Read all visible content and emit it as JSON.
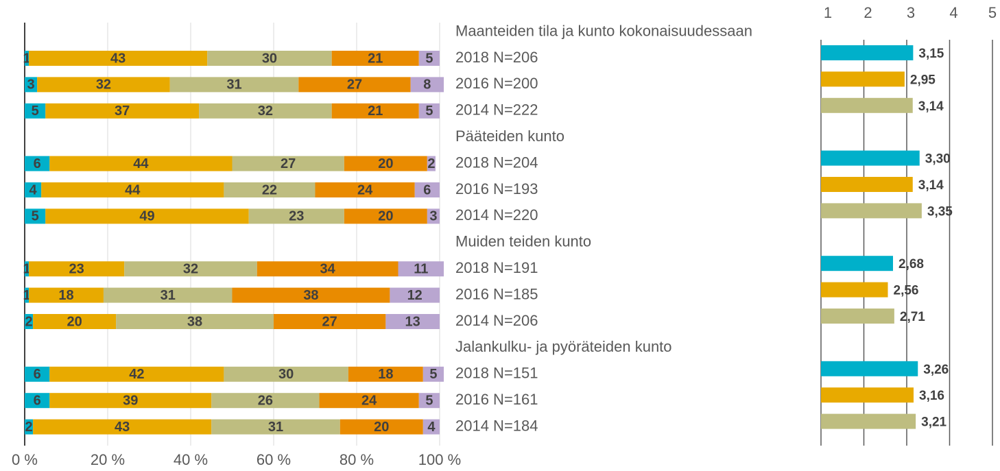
{
  "chart_data": [
    {
      "type": "stacked-bar",
      "groups": [
        "Maanteiden tila ja kunto kokonaisuudessaan",
        "Pääteiden kunto",
        "Muiden teiden kunto",
        "Jalankulku- ja pyöräteiden kunto"
      ],
      "categories": [
        "2018 N=206",
        "2016 N=200",
        "2014 N=222",
        "2018 N=204",
        "2016 N=193",
        "2014 N=220",
        "2018 N=191",
        "2016 N=185",
        "2014 N=206",
        "2018 N=151",
        "2016 N=161",
        "2014 N=184"
      ],
      "series": [
        {
          "color": "#00b0ca",
          "values": [
            1,
            3,
            5,
            6,
            4,
            5,
            1,
            1,
            2,
            6,
            6,
            2
          ]
        },
        {
          "color": "#e8aa00",
          "values": [
            43,
            32,
            37,
            44,
            44,
            49,
            23,
            18,
            20,
            42,
            39,
            43
          ]
        },
        {
          "color": "#bebd80",
          "values": [
            30,
            31,
            32,
            27,
            22,
            23,
            32,
            31,
            38,
            30,
            26,
            31
          ]
        },
        {
          "color": "#e98b00",
          "values": [
            21,
            27,
            21,
            20,
            24,
            20,
            34,
            38,
            27,
            18,
            24,
            20
          ]
        },
        {
          "color": "#b9a6d0",
          "values": [
            5,
            8,
            5,
            2,
            6,
            3,
            11,
            12,
            13,
            5,
            5,
            4
          ]
        }
      ],
      "xlim": [
        0,
        100
      ],
      "xticks": [
        {
          "value": 0,
          "label": "0 %"
        },
        {
          "value": 20,
          "label": "20 %"
        },
        {
          "value": 40,
          "label": "40 %"
        },
        {
          "value": 60,
          "label": "60 %"
        },
        {
          "value": 80,
          "label": "80 %"
        },
        {
          "value": 100,
          "label": "100 %"
        }
      ],
      "grid": true
    },
    {
      "type": "bar",
      "values": [
        3.15,
        2.95,
        3.14,
        3.3,
        3.14,
        3.35,
        2.68,
        2.56,
        2.71,
        3.26,
        3.16,
        3.21
      ],
      "value_labels": [
        "3,15",
        "2,95",
        "3,14",
        "3,30",
        "3,14",
        "3,35",
        "2,68",
        "2,56",
        "2,71",
        "3,26",
        "3,16",
        "3,21"
      ],
      "colors": [
        "#00b0ca",
        "#e8aa00",
        "#bebd80",
        "#00b0ca",
        "#e8aa00",
        "#bebd80",
        "#00b0ca",
        "#e8aa00",
        "#bebd80",
        "#00b0ca",
        "#e8aa00",
        "#bebd80"
      ],
      "xlim": [
        1,
        5
      ],
      "xticks": [
        1,
        2,
        3,
        4,
        5
      ],
      "grid": true
    }
  ]
}
